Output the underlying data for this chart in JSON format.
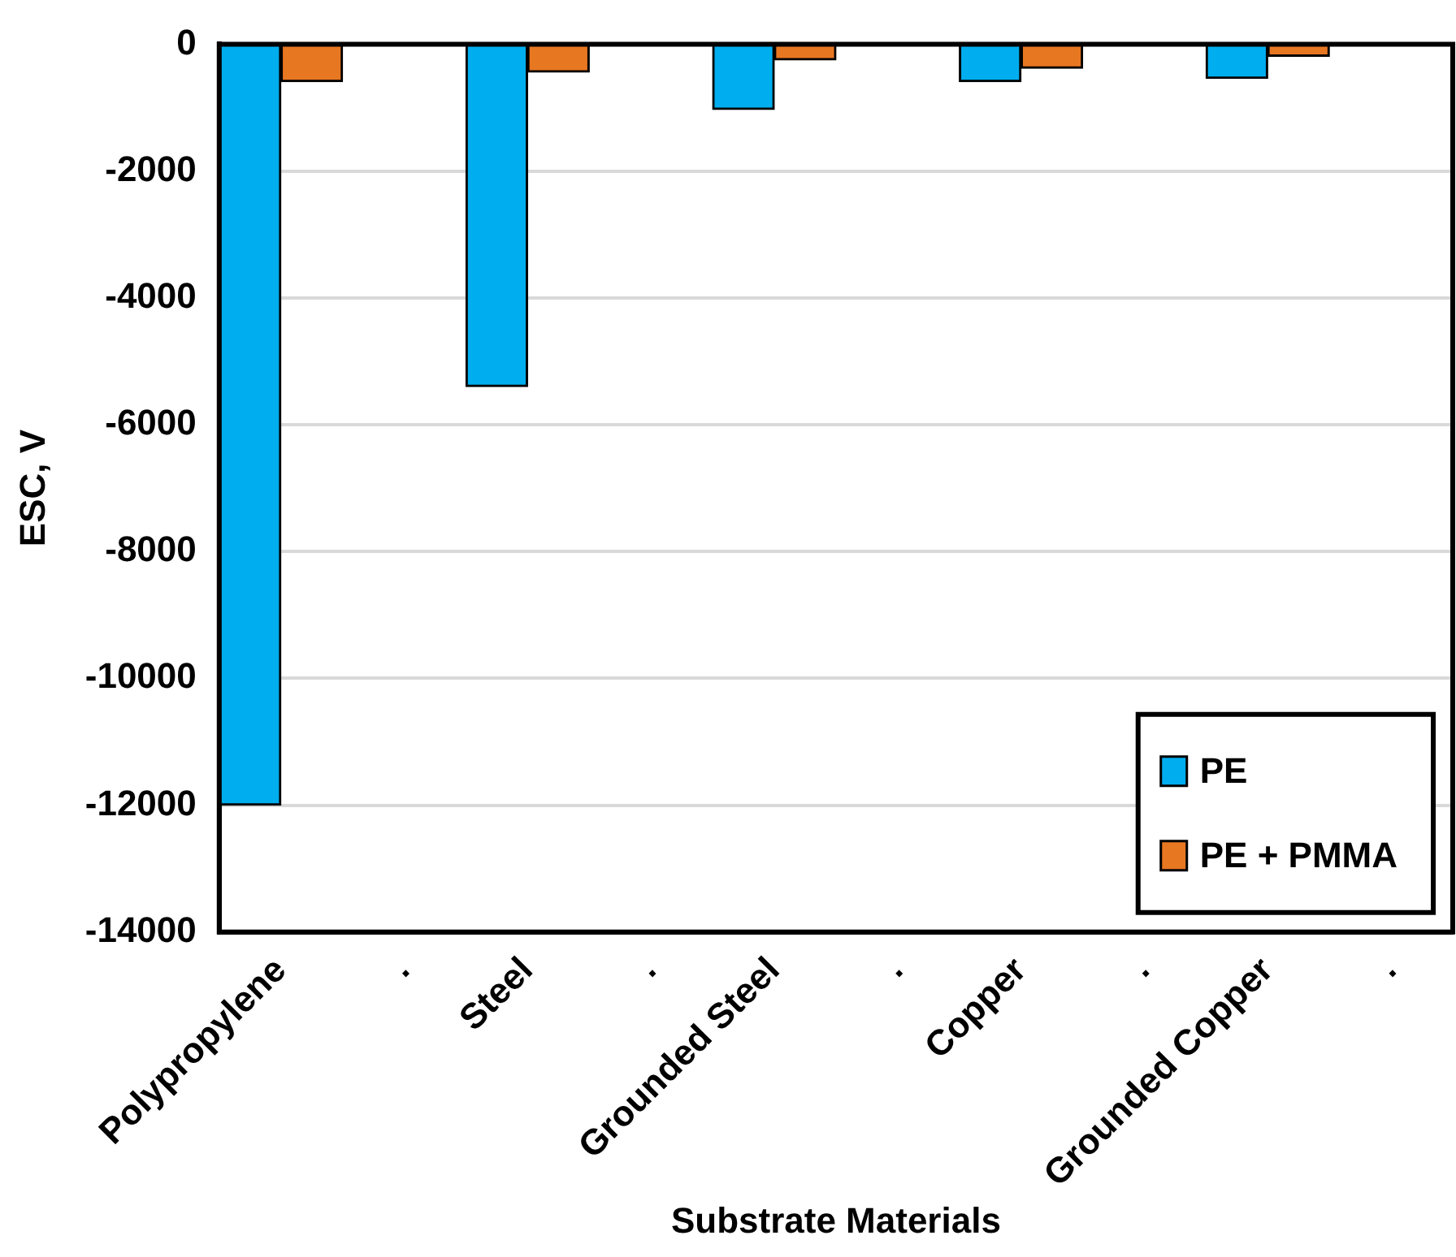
{
  "chart_data": {
    "type": "bar",
    "xlabel": "Substrate Materials",
    "ylabel": "ESC, V",
    "categories": [
      "Polypropylene",
      ".",
      "Steel",
      ".",
      "Grounded Steel",
      ".",
      "Copper",
      ".",
      "Grounded Copper",
      "."
    ],
    "series": [
      {
        "name": "PE",
        "color": "#00aeef",
        "values": [
          -12000,
          null,
          -5400,
          null,
          -1030,
          null,
          -590,
          null,
          -540,
          null
        ]
      },
      {
        "name": "PE + PMMA",
        "color": "#e87722",
        "values": [
          -590,
          null,
          -440,
          null,
          -250,
          null,
          -380,
          null,
          -190,
          null
        ]
      }
    ],
    "ylim": [
      -14000,
      0
    ],
    "yticks": [
      -14000,
      -12000,
      -10000,
      -8000,
      -6000,
      -4000,
      -2000,
      0
    ],
    "grid": "y",
    "legend": "bottom right"
  }
}
